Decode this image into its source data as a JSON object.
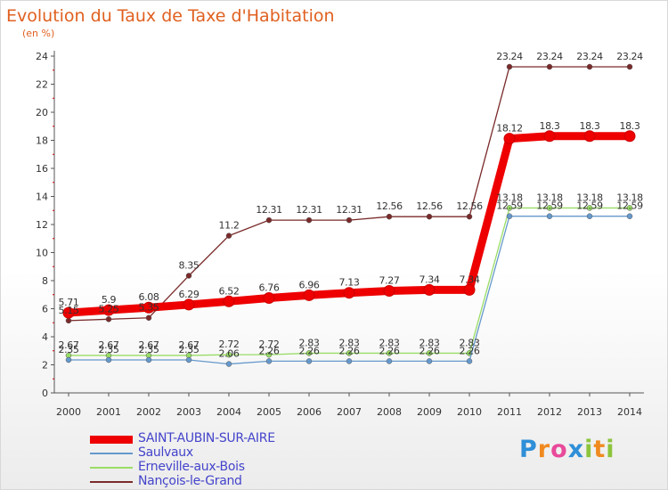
{
  "title": "Evolution du Taux de Taxe d'Habitation",
  "subtitle": "(en %)",
  "logo": {
    "p": "P",
    "r": "r",
    "o": "o",
    "x": "x",
    "i": "i",
    "t": "t",
    "i2": "i"
  },
  "chart_data": {
    "type": "line",
    "title": "Evolution du Taux de Taxe d'Habitation",
    "ylabel": "(en %)",
    "xlabel": "",
    "x": [
      "2000",
      "2001",
      "2002",
      "2003",
      "2004",
      "2005",
      "2006",
      "2007",
      "2008",
      "2009",
      "2010",
      "2011",
      "2012",
      "2013",
      "2014"
    ],
    "ylim": [
      0,
      24
    ],
    "yticks": [
      0,
      2,
      4,
      6,
      8,
      10,
      12,
      14,
      16,
      18,
      20,
      22,
      24
    ],
    "grid": false,
    "legend": "bottom-left",
    "series": [
      {
        "name": "Nançois-le-Grand",
        "color": "#7a2a2a",
        "values": [
          5.15,
          5.25,
          5.35,
          8.35,
          11.2,
          12.31,
          12.31,
          12.31,
          12.56,
          12.56,
          12.56,
          23.24,
          23.24,
          23.24,
          23.24
        ],
        "labels": [
          "5.15",
          "5.25",
          "5.35",
          "8.35",
          "11.2",
          "12.31",
          "12.31",
          "12.31",
          "12.56",
          "12.56",
          "12.56",
          "23.24",
          "23.24",
          "23.24",
          "23.24"
        ]
      },
      {
        "name": "Erneville-aux-Bois",
        "color": "#99dd66",
        "values": [
          2.67,
          2.67,
          2.67,
          2.67,
          2.72,
          2.72,
          2.83,
          2.83,
          2.83,
          2.83,
          2.83,
          13.18,
          13.18,
          13.18,
          13.18
        ],
        "labels": [
          "2.67",
          "2.67",
          "2.67",
          "2.67",
          "2.72",
          "2.72",
          "2.83",
          "2.83",
          "2.83",
          "2.83",
          "2.83",
          "13.18",
          "13.18",
          "13.18",
          "13.18"
        ]
      },
      {
        "name": "Saulvaux",
        "color": "#6699cc",
        "values": [
          2.35,
          2.35,
          2.35,
          2.35,
          2.06,
          2.26,
          2.26,
          2.26,
          2.26,
          2.26,
          2.26,
          12.59,
          12.59,
          12.59,
          12.59
        ],
        "labels": [
          "2.35",
          "2.35",
          "2.35",
          "2.35",
          "2.06",
          "2.26",
          "2.26",
          "2.26",
          "2.26",
          "2.26",
          "2.26",
          "12.59",
          "12.59",
          "12.59",
          "12.59"
        ]
      },
      {
        "name": "SAINT-AUBIN-SUR-AIRE",
        "color": "#ee0000",
        "values": [
          5.71,
          5.9,
          6.08,
          6.29,
          6.52,
          6.76,
          6.96,
          7.13,
          7.27,
          7.34,
          7.34,
          18.12,
          18.3,
          18.3,
          18.3
        ],
        "labels": [
          "5.71",
          "5.9",
          "6.08",
          "6.29",
          "6.52",
          "6.76",
          "6.96",
          "7.13",
          "7.27",
          "7.34",
          "7.34",
          "18.12",
          "18.3",
          "18.3",
          "18.3"
        ]
      }
    ]
  }
}
